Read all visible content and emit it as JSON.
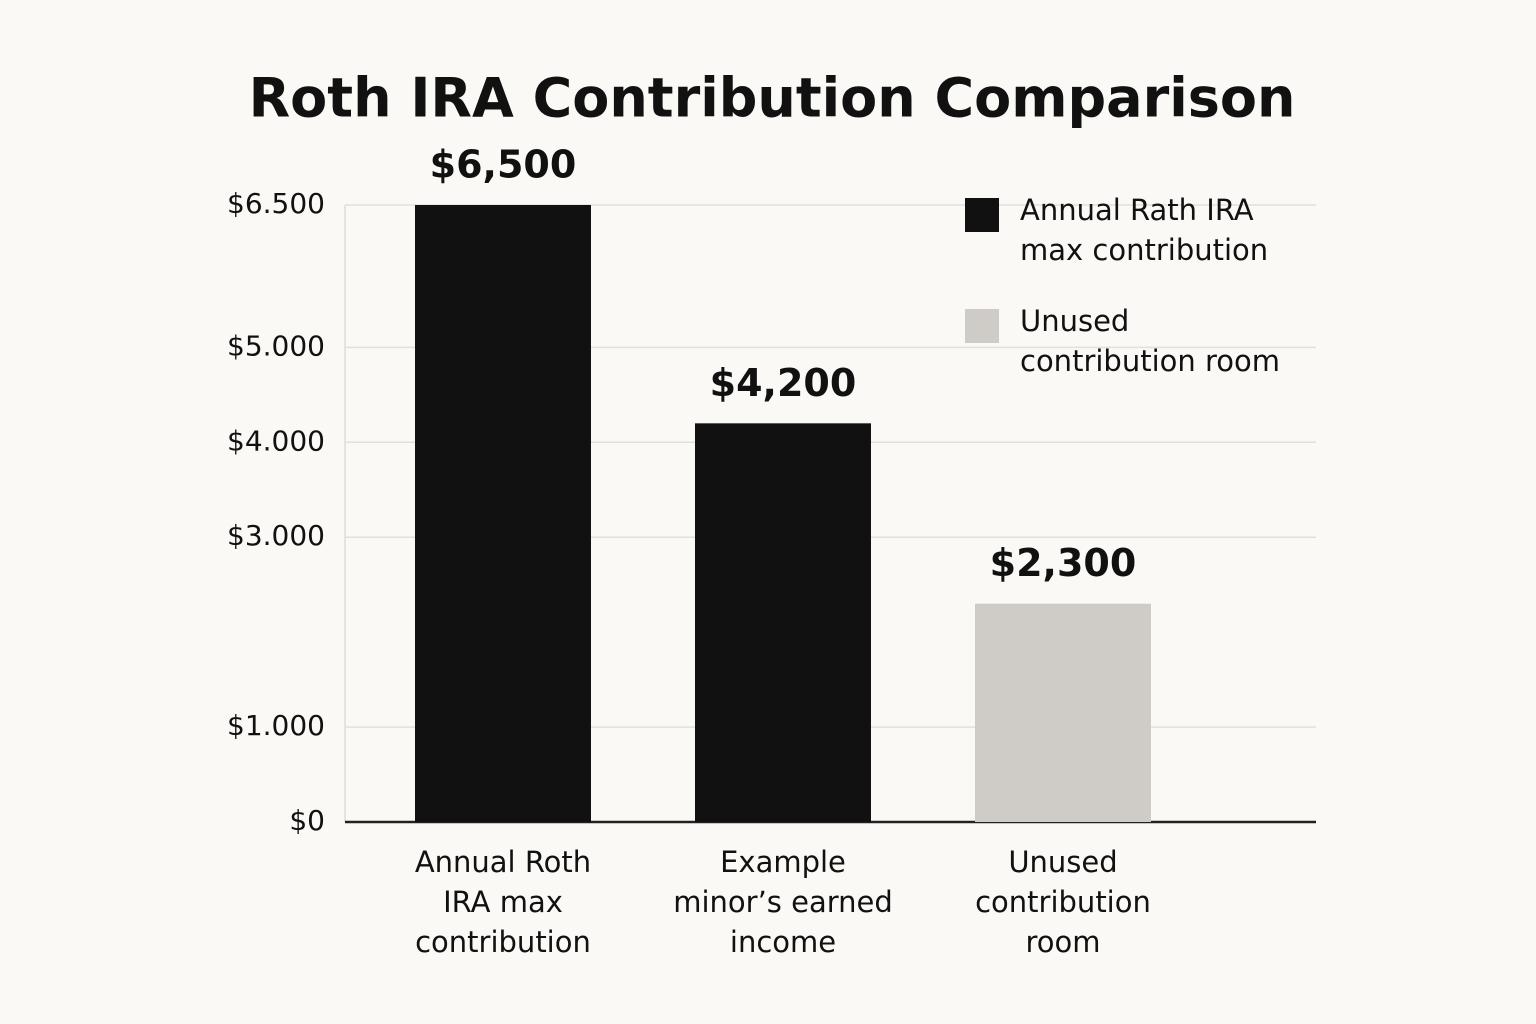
{
  "chart_data": {
    "type": "bar",
    "title": "Roth IRA Contribution Comparison",
    "categories": [
      "Annual Roth IRA max contribution",
      "Example minor’s earned income",
      "Unused contribution room"
    ],
    "series": [
      {
        "name": "Annual Rath IRA max contribution",
        "color": "#111111",
        "values": [
          6500,
          4200,
          null
        ],
        "value_labels": [
          "$6,500",
          "$4,200",
          null
        ]
      },
      {
        "name": "Unused contribution room",
        "color": "#cfccc8",
        "values": [
          null,
          null,
          2300
        ],
        "value_labels": [
          null,
          null,
          "$2,300"
        ]
      }
    ],
    "ylim": [
      0,
      6500
    ],
    "yticks": [
      {
        "value": 0,
        "label": "$0"
      },
      {
        "value": 1000,
        "label": "$1.000"
      },
      {
        "value": 3000,
        "label": "$3.000"
      },
      {
        "value": 4000,
        "label": "$4.000"
      },
      {
        "value": 5000,
        "label": "$5.000"
      },
      {
        "value": 6500,
        "label": "$6.500"
      }
    ],
    "grid": true,
    "legend": "upper right"
  }
}
